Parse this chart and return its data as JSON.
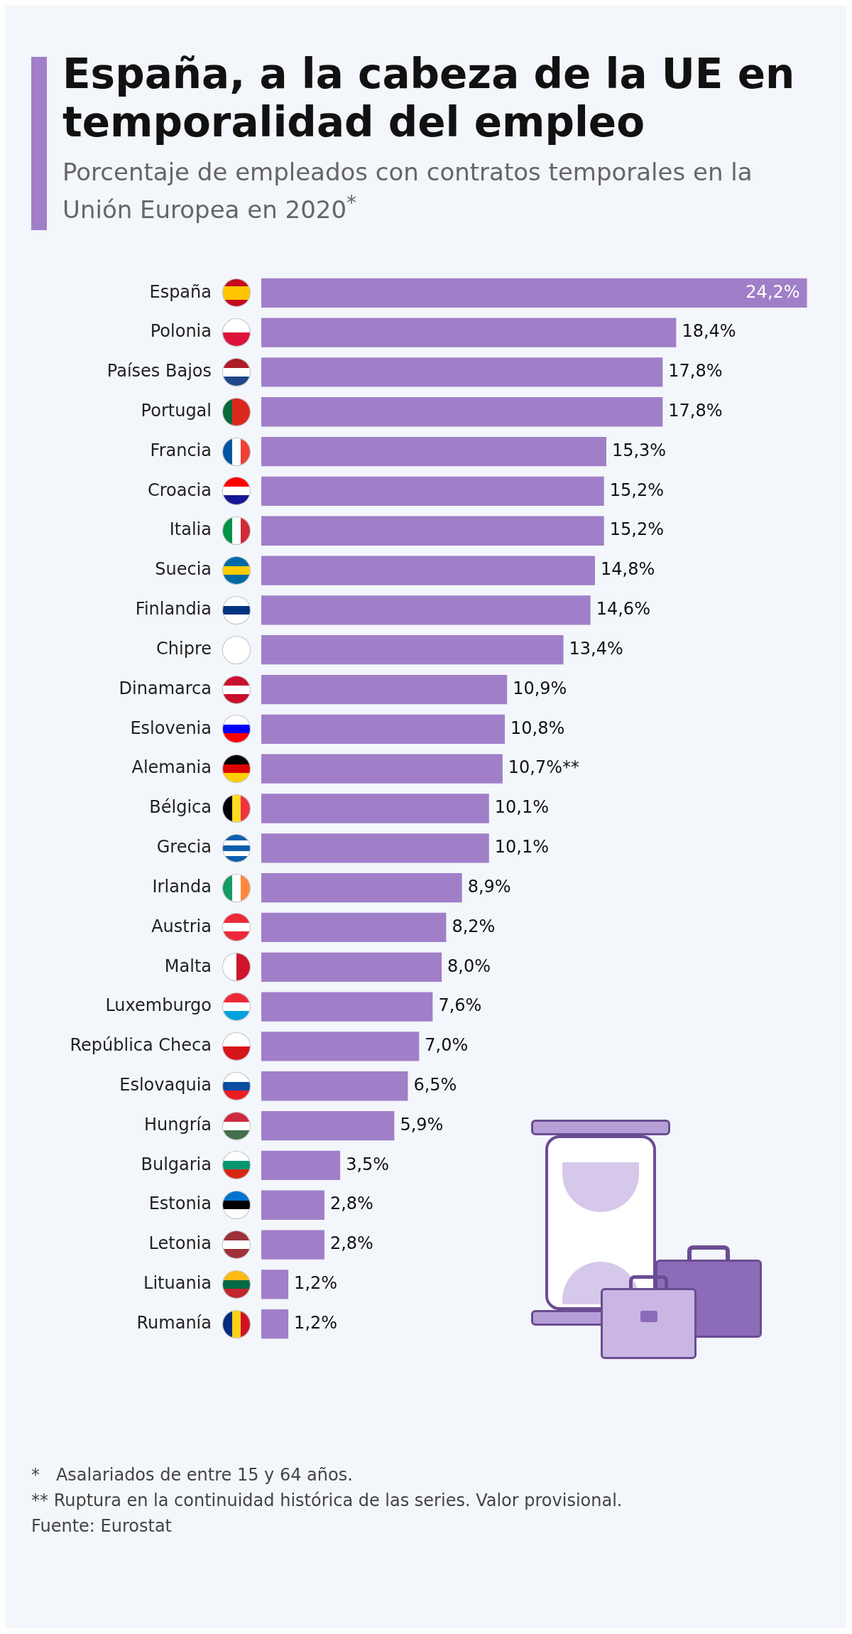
{
  "chart_data": {
    "type": "bar",
    "orientation": "horizontal",
    "title": "España, a la cabeza de la UE en temporalidad del empleo",
    "subtitle": "Porcentaje de empleados con contratos temporales en la Unión Europea en 2020$^{*}$",
    "categories": [
      "España",
      "Polonia",
      "Países Bajos",
      "Portugal",
      "Francia",
      "Croacia",
      "Italia",
      "Suecia",
      "Finlandia",
      "Chipre",
      "Dinamarca",
      "Eslovenia",
      "Alemania",
      "Bélgica",
      "Grecia",
      "Irlanda",
      "Austria",
      "Malta",
      "Luxemburgo",
      "República Checa",
      "Eslovaquia",
      "Hungría",
      "Bulgaria",
      "Estonia",
      "Letonia",
      "Lituania",
      "Rumanía"
    ],
    "values": [
      24.2,
      18.4,
      17.8,
      17.8,
      15.3,
      15.2,
      15.2,
      14.8,
      14.6,
      13.4,
      10.9,
      10.8,
      10.7,
      10.1,
      10.1,
      8.9,
      8.2,
      8.0,
      7.6,
      7.0,
      6.5,
      5.9,
      3.5,
      2.8,
      2.8,
      1.2,
      1.2
    ],
    "value_labels": [
      "24,2%",
      "18,4%",
      "17,8%",
      "17,8%",
      "15,3%",
      "15,2%",
      "15,2%",
      "14,8%",
      "14,6%",
      "13,4%",
      "10,9%",
      "10,8%",
      "10,7%**",
      "10,1%",
      "10,1%",
      "8,9%",
      "8,2%",
      "8,0%",
      "7,6%",
      "7,0%",
      "6,5%",
      "5,9%",
      "3,5%",
      "2,8%",
      "2,8%",
      "1,2%",
      "1,2%"
    ],
    "color": "#a07fc8",
    "grid": false,
    "legend": false,
    "annotations": [
      "*   Asalariados de entre 15 y 64 años.",
      "** Ruptura en la continuidad histórica de las series. Valor provisional.",
      "Fuente: Eurostat"
    ]
  }
}
